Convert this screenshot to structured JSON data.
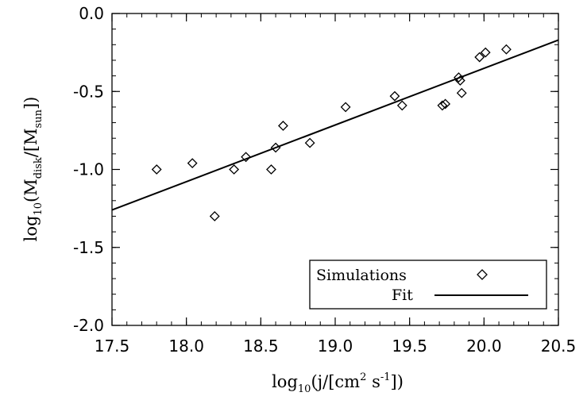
{
  "chart_data": {
    "type": "scatter",
    "xlabel": "log10(j/[cm2 s-1])",
    "ylabel": "log10(Mdisk/[Msun])",
    "xlim": [
      17.5,
      20.5
    ],
    "ylim": [
      -2.0,
      0.0
    ],
    "x_ticks": [
      "17.5",
      "18.0",
      "18.5",
      "19.0",
      "19.5",
      "20.0",
      "20.5"
    ],
    "y_ticks": [
      "0.0",
      "-0.5",
      "-1.0",
      "-1.5",
      "-2.0"
    ],
    "grid": false,
    "legend_position": "bottom-right",
    "series": [
      {
        "name": "Simulations",
        "marker": "diamond",
        "points": [
          [
            17.8,
            -1.0
          ],
          [
            18.04,
            -0.96
          ],
          [
            18.19,
            -1.3
          ],
          [
            18.32,
            -1.0
          ],
          [
            18.4,
            -0.92
          ],
          [
            18.57,
            -1.0
          ],
          [
            18.6,
            -0.86
          ],
          [
            18.65,
            -0.72
          ],
          [
            18.83,
            -0.83
          ],
          [
            19.07,
            -0.6
          ],
          [
            19.4,
            -0.53
          ],
          [
            19.45,
            -0.59
          ],
          [
            19.72,
            -0.59
          ],
          [
            19.74,
            -0.58
          ],
          [
            19.83,
            -0.41
          ],
          [
            19.84,
            -0.43
          ],
          [
            19.85,
            -0.51
          ],
          [
            19.97,
            -0.28
          ],
          [
            20.01,
            -0.25
          ],
          [
            20.15,
            -0.23
          ]
        ]
      },
      {
        "name": "Fit",
        "style": "line",
        "points": [
          [
            17.5,
            -1.26
          ],
          [
            20.5,
            -0.17
          ]
        ]
      }
    ]
  },
  "axis_label_parts": {
    "x": {
      "pre": "log",
      "sub": "10",
      "mid": "(j/[cm",
      "sup1": "2",
      "mid2": " s",
      "sup2": "-1",
      "post": "])"
    },
    "y": {
      "pre": "log",
      "sub": "10",
      "mid": "(M",
      "sub2": "disk",
      "mid2": "/[M",
      "sub3": "sun",
      "post": "])"
    }
  }
}
